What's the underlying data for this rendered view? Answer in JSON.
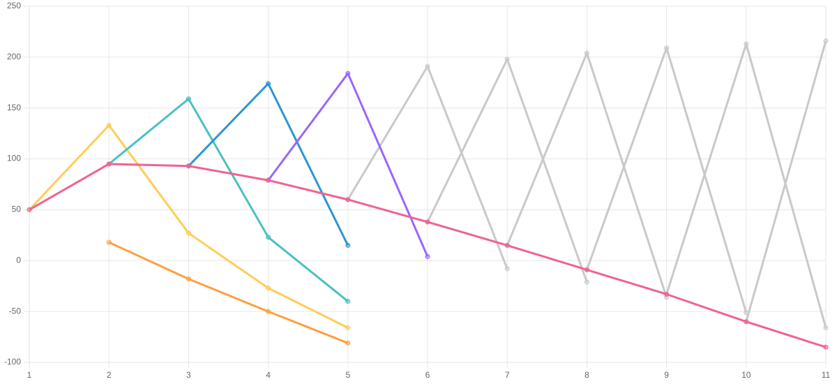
{
  "chart_data": {
    "type": "line",
    "x": [
      1,
      2,
      3,
      4,
      5,
      6,
      7,
      8,
      9,
      10,
      11
    ],
    "xlim": [
      1,
      11
    ],
    "xticks": [
      1,
      2,
      3,
      4,
      5,
      6,
      7,
      8,
      9,
      10,
      11
    ],
    "ylim": [
      -100,
      250
    ],
    "yticks": [
      -100,
      -50,
      0,
      50,
      100,
      150,
      200,
      250
    ],
    "grid": true,
    "series": [
      {
        "color": "#c9c9c9",
        "values": [
          null,
          null,
          null,
          null,
          60,
          191,
          -8,
          null,
          null,
          null,
          null
        ]
      },
      {
        "color": "#c9c9c9",
        "values": [
          null,
          null,
          null,
          null,
          null,
          38,
          198,
          -21,
          null,
          null,
          null
        ]
      },
      {
        "color": "#c9c9c9",
        "values": [
          null,
          null,
          null,
          null,
          null,
          null,
          15,
          204,
          -36,
          null,
          null
        ]
      },
      {
        "color": "#c9c9c9",
        "values": [
          null,
          null,
          null,
          null,
          null,
          null,
          null,
          -9,
          209,
          -51,
          null
        ]
      },
      {
        "color": "#c9c9c9",
        "values": [
          null,
          null,
          null,
          null,
          null,
          null,
          null,
          null,
          -33,
          213,
          -66
        ]
      },
      {
        "color": "#c9c9c9",
        "values": [
          null,
          null,
          null,
          null,
          null,
          null,
          null,
          null,
          null,
          -60,
          216
        ]
      },
      {
        "color": "#ff9f40",
        "values": [
          null,
          18,
          -18,
          -50,
          -81,
          null,
          null,
          null,
          null,
          null,
          null
        ]
      },
      {
        "color": "#ffcd56",
        "values": [
          50,
          133,
          27,
          -27,
          -66,
          null,
          null,
          null,
          null,
          null,
          null
        ]
      },
      {
        "color": "#4bc0c0",
        "values": [
          null,
          95,
          159,
          23,
          -40,
          null,
          null,
          null,
          null,
          null,
          null
        ]
      },
      {
        "color": "#2e96cf",
        "values": [
          null,
          null,
          93,
          174,
          15,
          null,
          null,
          null,
          null,
          null,
          null
        ]
      },
      {
        "color": "#9966ff",
        "values": [
          null,
          null,
          null,
          79,
          184,
          4,
          null,
          null,
          null,
          null,
          null
        ]
      },
      {
        "color": "#f06292",
        "values": [
          50,
          95,
          93,
          79,
          60,
          38,
          15,
          -9,
          -33,
          -60,
          -85
        ]
      }
    ]
  }
}
